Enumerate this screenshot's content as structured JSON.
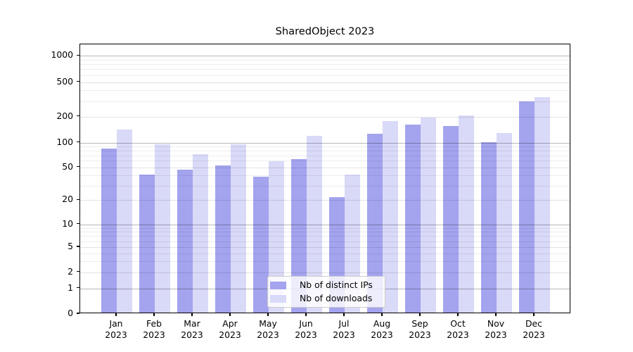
{
  "chart_data": {
    "type": "bar",
    "title": "SharedObject 2023",
    "categories": [
      "Jan",
      "Feb",
      "Mar",
      "Apr",
      "May",
      "Jun",
      "Jul",
      "Aug",
      "Sep",
      "Oct",
      "Nov",
      "Dec"
    ],
    "year_label": "2023",
    "series": [
      {
        "name": "Nb of distinct IPs",
        "color": "#a3a3ee",
        "values": [
          81,
          39,
          45,
          51,
          37,
          61,
          21,
          122,
          156,
          150,
          97,
          290
        ]
      },
      {
        "name": "Nb of downloads",
        "color": "#d9d9f8",
        "values": [
          137,
          91,
          70,
          92,
          57,
          115,
          39,
          170,
          188,
          200,
          124,
          322
        ]
      }
    ],
    "xlabel": "",
    "ylabel": "",
    "y_tick_labels": [
      "0",
      "1",
      "2",
      "5",
      "10",
      "20",
      "50",
      "100",
      "200",
      "500",
      "1000"
    ],
    "y_scale": "log-like above 1 with linear segment 0-1",
    "ylim": [
      0,
      1340
    ],
    "grid": "horizontal major and minor gridlines",
    "legend_position": "inside lower-center"
  }
}
